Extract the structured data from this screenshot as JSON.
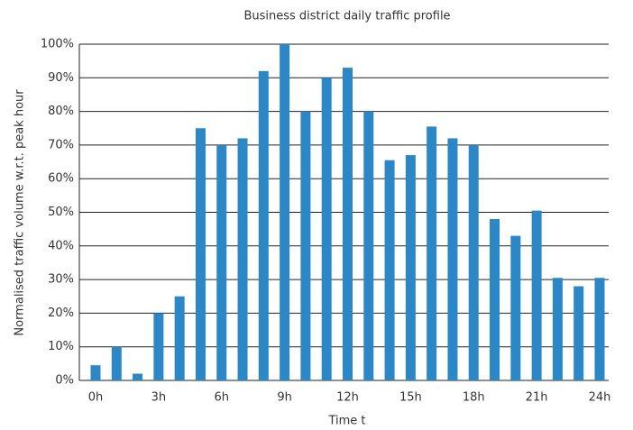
{
  "chart_data": {
    "type": "bar",
    "title": "Business district daily traffic profile",
    "x_label": "Time t",
    "y_label": "Normalised traffic volume w.r.t. peak hour",
    "categories": [
      "0h",
      null,
      null,
      "3h",
      null,
      null,
      "6h",
      null,
      null,
      "9h",
      null,
      null,
      "12h",
      null,
      null,
      "15h",
      null,
      null,
      "18h",
      null,
      null,
      "21h",
      null,
      null,
      "24h"
    ],
    "values": [
      4.5,
      10,
      2,
      20,
      25,
      75,
      70,
      72,
      92,
      100,
      80,
      90,
      93,
      80,
      65.5,
      67,
      75.5,
      72,
      70,
      48,
      43,
      50.5,
      30.5,
      28,
      30.5
    ],
    "color": "#2a87c8",
    "ylim": [
      0,
      100
    ],
    "yticks": [
      {
        "value": 0,
        "label": "0%"
      },
      {
        "value": 10,
        "label": "10%"
      },
      {
        "value": 20,
        "label": "20%"
      },
      {
        "value": 30,
        "label": "30%"
      },
      {
        "value": 40,
        "label": "40%"
      },
      {
        "value": 50,
        "label": "50%"
      },
      {
        "value": 60,
        "label": "60%"
      },
      {
        "value": 70,
        "label": "70%"
      },
      {
        "value": 80,
        "label": "80%"
      },
      {
        "value": 90,
        "label": "90%"
      },
      {
        "value": 100,
        "label": "100%"
      }
    ],
    "grid": true
  }
}
